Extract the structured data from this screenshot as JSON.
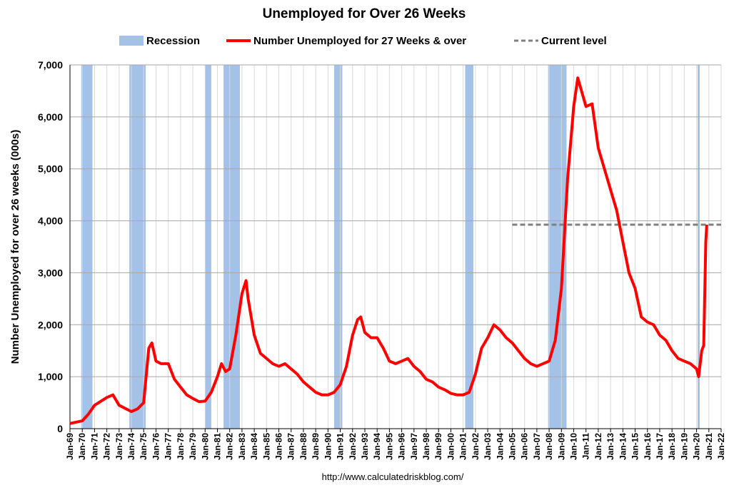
{
  "chart_data": {
    "type": "line",
    "title": "Unemployed for Over 26 Weeks",
    "y_label": "Number Unemployed for over 26 weeks (000s)",
    "source": "http://www.calculatedriskblog.com/",
    "ylim": [
      0,
      7000
    ],
    "yticks": [
      0,
      {
        "value": 1000,
        "label": "1,000"
      },
      {
        "value": 2000,
        "label": "2,000"
      },
      {
        "value": 3000,
        "label": "3,000"
      },
      {
        "value": 4000,
        "label": "4,000"
      },
      {
        "value": 5000,
        "label": "5,000"
      },
      {
        "value": 6000,
        "label": "6,000"
      },
      {
        "value": 7000,
        "label": "7,000"
      }
    ],
    "xlim": [
      "Jan-69",
      "Jan-22"
    ],
    "xticks": [
      "Jan-69",
      "Jan-70",
      "Jan-71",
      "Jan-72",
      "Jan-73",
      "Jan-74",
      "Jan-75",
      "Jan-76",
      "Jan-77",
      "Jan-78",
      "Jan-79",
      "Jan-80",
      "Jan-81",
      "Jan-82",
      "Jan-83",
      "Jan-84",
      "Jan-85",
      "Jan-86",
      "Jan-87",
      "Jan-88",
      "Jan-89",
      "Jan-90",
      "Jan-91",
      "Jan-92",
      "Jan-93",
      "Jan-94",
      "Jan-95",
      "Jan-96",
      "Jan-97",
      "Jan-98",
      "Jan-99",
      "Jan-00",
      "Jan-01",
      "Jan-02",
      "Jan-03",
      "Jan-04",
      "Jan-05",
      "Jan-06",
      "Jan-07",
      "Jan-08",
      "Jan-09",
      "Jan-10",
      "Jan-11",
      "Jan-12",
      "Jan-13",
      "Jan-14",
      "Jan-15",
      "Jan-16",
      "Jan-17",
      "Jan-18",
      "Jan-19",
      "Jan-20",
      "Jan-21",
      "Jan-22"
    ],
    "grid": true,
    "recession": {
      "name": "Recession",
      "color": "#a4c2e8"
    },
    "recessions": [
      {
        "start": "Dec-69",
        "end": "Nov-70"
      },
      {
        "start": "Nov-73",
        "end": "Mar-75"
      },
      {
        "start": "Jan-80",
        "end": "Jul-80"
      },
      {
        "start": "Jul-81",
        "end": "Nov-82"
      },
      {
        "start": "Jul-90",
        "end": "Mar-91"
      },
      {
        "start": "Mar-01",
        "end": "Nov-01"
      },
      {
        "start": "Dec-07",
        "end": "Jun-09"
      },
      {
        "start": "Feb-20",
        "end": "Apr-20"
      }
    ],
    "current_level": {
      "name": "Current level",
      "value": 3925,
      "from": "Jan-05",
      "color": "#808080"
    },
    "series": [
      {
        "name": "Number Unemployed for 27 Weeks & over",
        "color": "#ff0000",
        "x": [
          "Jan-69",
          "Jan-70",
          "Jul-70",
          "Jan-71",
          "Jan-72",
          "Jul-72",
          "Jan-73",
          "Jan-74",
          "Jul-74",
          "Jan-75",
          "Jun-75",
          "Sep-75",
          "Jan-76",
          "Jun-76",
          "Jan-77",
          "Jul-77",
          "Jan-78",
          "Jul-78",
          "Jan-79",
          "Jul-79",
          "Jan-80",
          "Jul-80",
          "Jan-81",
          "May-81",
          "Sep-81",
          "Jan-82",
          "Jul-82",
          "Jan-83",
          "May-83",
          "Jul-83",
          "Jan-84",
          "Jul-84",
          "Jan-85",
          "Jul-85",
          "Jan-86",
          "Jul-86",
          "Jan-87",
          "Jul-87",
          "Jan-88",
          "Jul-88",
          "Jan-89",
          "Jul-89",
          "Jan-90",
          "Jul-90",
          "Jan-91",
          "Jul-91",
          "Jan-92",
          "Jun-92",
          "Sep-92",
          "Jan-93",
          "Jul-93",
          "Jan-94",
          "Jul-94",
          "Jan-95",
          "Jul-95",
          "Jan-96",
          "Jul-96",
          "Jan-97",
          "Jul-97",
          "Jan-98",
          "Jul-98",
          "Jan-99",
          "Jul-99",
          "Jan-00",
          "Jul-00",
          "Jan-01",
          "Jul-01",
          "Jan-02",
          "Jul-02",
          "Jan-03",
          "Jul-03",
          "Jan-04",
          "Jul-04",
          "Jan-05",
          "Jul-05",
          "Jan-06",
          "Jul-06",
          "Jan-07",
          "Jul-07",
          "Jan-08",
          "Jul-08",
          "Jan-09",
          "Jul-09",
          "Jan-10",
          "May-10",
          "Jan-11",
          "Jul-11",
          "Jan-12",
          "Jul-12",
          "Jan-13",
          "Jul-13",
          "Jan-14",
          "Jul-14",
          "Jan-15",
          "Jul-15",
          "Jan-16",
          "Jul-16",
          "Jan-17",
          "Jul-17",
          "Jan-18",
          "Jul-18",
          "Jan-19",
          "Jul-19",
          "Jan-20",
          "Mar-20",
          "Jun-20",
          "Aug-20",
          "Oct-20",
          "Nov-20"
        ],
        "values": [
          100,
          150,
          280,
          450,
          600,
          650,
          450,
          330,
          380,
          500,
          1550,
          1650,
          1300,
          1250,
          1250,
          950,
          800,
          650,
          580,
          520,
          530,
          700,
          1000,
          1250,
          1100,
          1150,
          1800,
          2600,
          2850,
          2500,
          1800,
          1450,
          1350,
          1250,
          1200,
          1250,
          1150,
          1050,
          900,
          800,
          700,
          650,
          650,
          700,
          850,
          1200,
          1800,
          2100,
          2150,
          1850,
          1750,
          1750,
          1550,
          1300,
          1250,
          1300,
          1350,
          1200,
          1100,
          950,
          900,
          800,
          750,
          680,
          650,
          650,
          700,
          1050,
          1550,
          1750,
          2000,
          1900,
          1750,
          1650,
          1500,
          1350,
          1250,
          1200,
          1250,
          1300,
          1700,
          2700,
          4800,
          6200,
          6750,
          6200,
          6250,
          5400,
          5000,
          4600,
          4200,
          3600,
          3000,
          2700,
          2150,
          2050,
          2000,
          1800,
          1700,
          1500,
          1350,
          1300,
          1250,
          1150,
          1000,
          1500,
          1600,
          3600,
          3925
        ]
      }
    ]
  }
}
